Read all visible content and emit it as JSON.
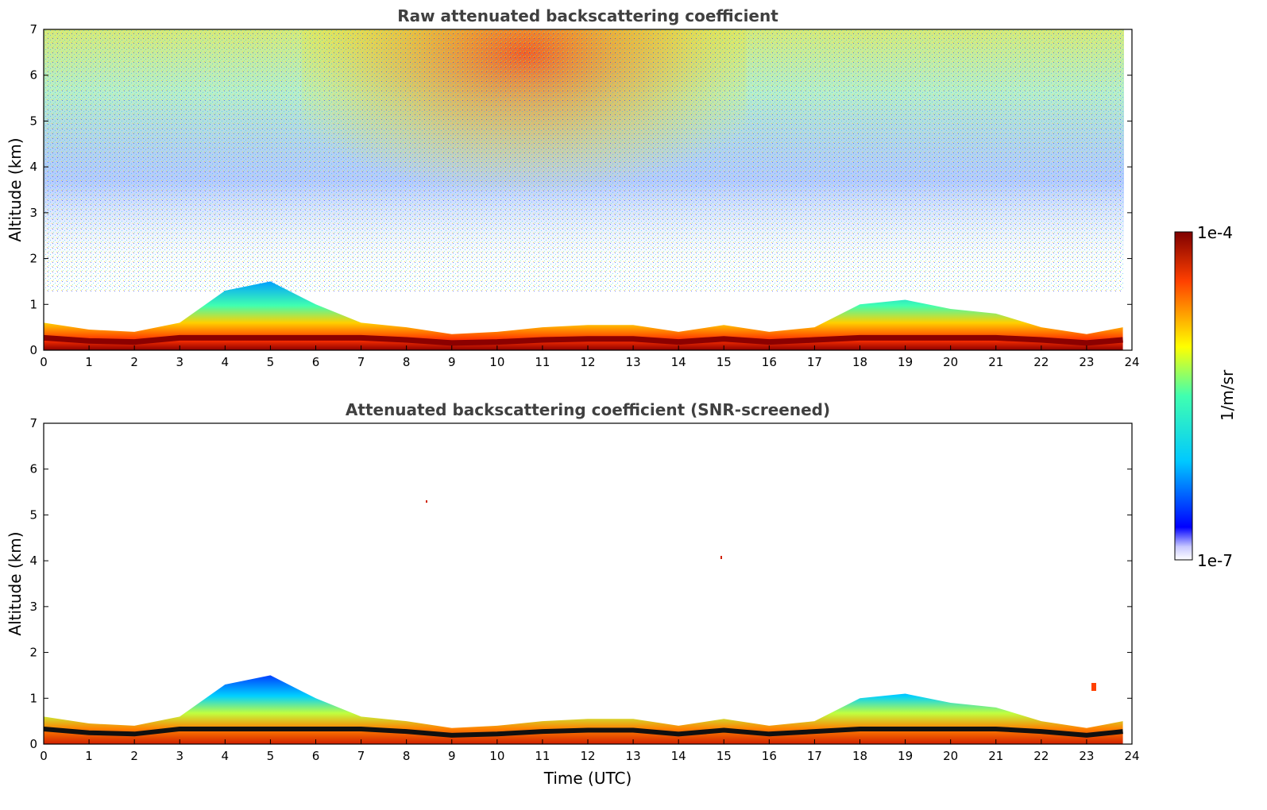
{
  "chart_data": [
    {
      "type": "heatmap",
      "title": "Raw attenuated backscattering coefficient",
      "xlabel": "",
      "ylabel": "Altitude (km)",
      "xlim": [
        0,
        24
      ],
      "ylim": [
        0,
        7
      ],
      "xticks": [
        "0",
        "1",
        "2",
        "3",
        "4",
        "5",
        "6",
        "7",
        "8",
        "9",
        "10",
        "11",
        "12",
        "13",
        "14",
        "15",
        "16",
        "17",
        "18",
        "19",
        "20",
        "21",
        "22",
        "23",
        "24"
      ],
      "yticks": [
        "0",
        "1",
        "2",
        "3",
        "4",
        "5",
        "6",
        "7"
      ],
      "boundary_layer_top_km": {
        "time_utc": [
          0,
          1,
          2,
          3,
          4,
          5,
          6,
          7,
          8,
          9,
          10,
          11,
          12,
          13,
          14,
          15,
          16,
          17,
          18,
          19,
          20,
          21,
          22,
          23,
          23.8
        ],
        "altitude_km": [
          0.6,
          0.45,
          0.4,
          0.6,
          1.3,
          1.5,
          1.0,
          0.6,
          0.5,
          0.35,
          0.4,
          0.5,
          0.55,
          0.55,
          0.4,
          0.55,
          0.4,
          0.5,
          1.0,
          1.1,
          0.9,
          0.8,
          0.5,
          0.35,
          0.5
        ]
      },
      "notes_visible": "noisy background signal increasing with altitude, strongest (red/orange) aloft around 7-13 UTC"
    },
    {
      "type": "heatmap",
      "title": "Attenuated backscattering coefficient (SNR-screened)",
      "xlabel": "Time (UTC)",
      "ylabel": "Altitude (km)",
      "xlim": [
        0,
        24
      ],
      "ylim": [
        0,
        7
      ],
      "xticks": [
        "0",
        "1",
        "2",
        "3",
        "4",
        "5",
        "6",
        "7",
        "8",
        "9",
        "10",
        "11",
        "12",
        "13",
        "14",
        "15",
        "16",
        "17",
        "18",
        "19",
        "20",
        "21",
        "22",
        "23",
        "24"
      ],
      "yticks": [
        "0",
        "1",
        "2",
        "3",
        "4",
        "5",
        "6",
        "7"
      ],
      "boundary_layer_top_km": {
        "time_utc": [
          0,
          1,
          2,
          3,
          4,
          5,
          6,
          7,
          8,
          9,
          10,
          11,
          12,
          13,
          14,
          15,
          16,
          17,
          18,
          19,
          20,
          21,
          22,
          23,
          23.8
        ],
        "altitude_km": [
          0.6,
          0.45,
          0.4,
          0.6,
          1.3,
          1.5,
          1.0,
          0.6,
          0.5,
          0.35,
          0.4,
          0.5,
          0.55,
          0.55,
          0.4,
          0.55,
          0.4,
          0.5,
          1.0,
          1.1,
          0.9,
          0.8,
          0.5,
          0.35,
          0.5
        ]
      }
    }
  ],
  "colorbar": {
    "min_label": "1e-7",
    "max_label": "1e-4",
    "unit_label": "1/m/sr",
    "scale": "log",
    "colormap": "jet"
  },
  "colors": {
    "background_noise": "#7fd0ff",
    "boundary_layer_bottom": "#8b0000",
    "text_title": "#404040"
  }
}
